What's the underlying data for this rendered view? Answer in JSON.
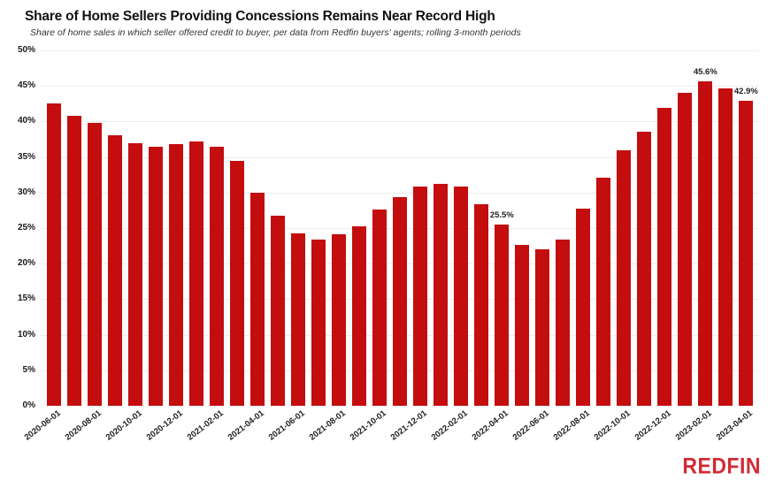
{
  "header": {
    "title": "Share of Home Sellers Providing Concessions Remains Near Record High",
    "subtitle": "Share of home sales in which seller offered credit to buyer, per data from Redfin buyers' agents; rolling 3-month periods"
  },
  "branding": {
    "logo_text": "REDFIN"
  },
  "colors": {
    "bar": "#c40d0f",
    "grid": "#ececec",
    "axis_text": "#1a1a1a",
    "annotation_text": "#222222",
    "logo": "#d22a34",
    "background": "#ffffff"
  },
  "chart_data": {
    "type": "bar",
    "title": "Share of Home Sellers Providing Concessions Remains Near Record High",
    "subtitle": "Share of home sales in which seller offered credit to buyer, per data from Redfin buyers' agents; rolling 3-month periods",
    "xlabel": "",
    "ylabel": "",
    "ylim": [
      0,
      50
    ],
    "ytick_step": 5,
    "ytick_suffix": "%",
    "grid": "horizontal",
    "legend": "none",
    "xtick_every": 2,
    "categories": [
      "2020-06-01",
      "2020-07-01",
      "2020-08-01",
      "2020-09-01",
      "2020-10-01",
      "2020-11-01",
      "2020-12-01",
      "2021-01-01",
      "2021-02-01",
      "2021-03-01",
      "2021-04-01",
      "2021-05-01",
      "2021-06-01",
      "2021-07-01",
      "2021-08-01",
      "2021-09-01",
      "2021-10-01",
      "2021-11-01",
      "2021-12-01",
      "2022-01-01",
      "2022-02-01",
      "2022-03-01",
      "2022-04-01",
      "2022-05-01",
      "2022-06-01",
      "2022-07-01",
      "2022-08-01",
      "2022-09-01",
      "2022-10-01",
      "2022-11-01",
      "2022-12-01",
      "2023-01-01",
      "2023-02-01",
      "2023-03-01",
      "2023-04-01"
    ],
    "values": [
      42.5,
      40.8,
      39.8,
      38.0,
      37.0,
      36.5,
      36.8,
      37.2,
      36.5,
      34.4,
      30.0,
      26.8,
      24.3,
      23.4,
      24.1,
      25.2,
      27.6,
      29.4,
      30.8,
      31.2,
      30.9,
      28.4,
      25.5,
      22.7,
      22.0,
      23.4,
      27.7,
      32.1,
      35.9,
      38.6,
      41.9,
      44.0,
      45.6,
      44.7,
      42.9
    ],
    "annotations": [
      {
        "category": "2022-04-01",
        "label": "25.5%"
      },
      {
        "category": "2023-02-01",
        "label": "45.6%"
      },
      {
        "category": "2023-04-01",
        "label": "42.9%"
      }
    ]
  }
}
